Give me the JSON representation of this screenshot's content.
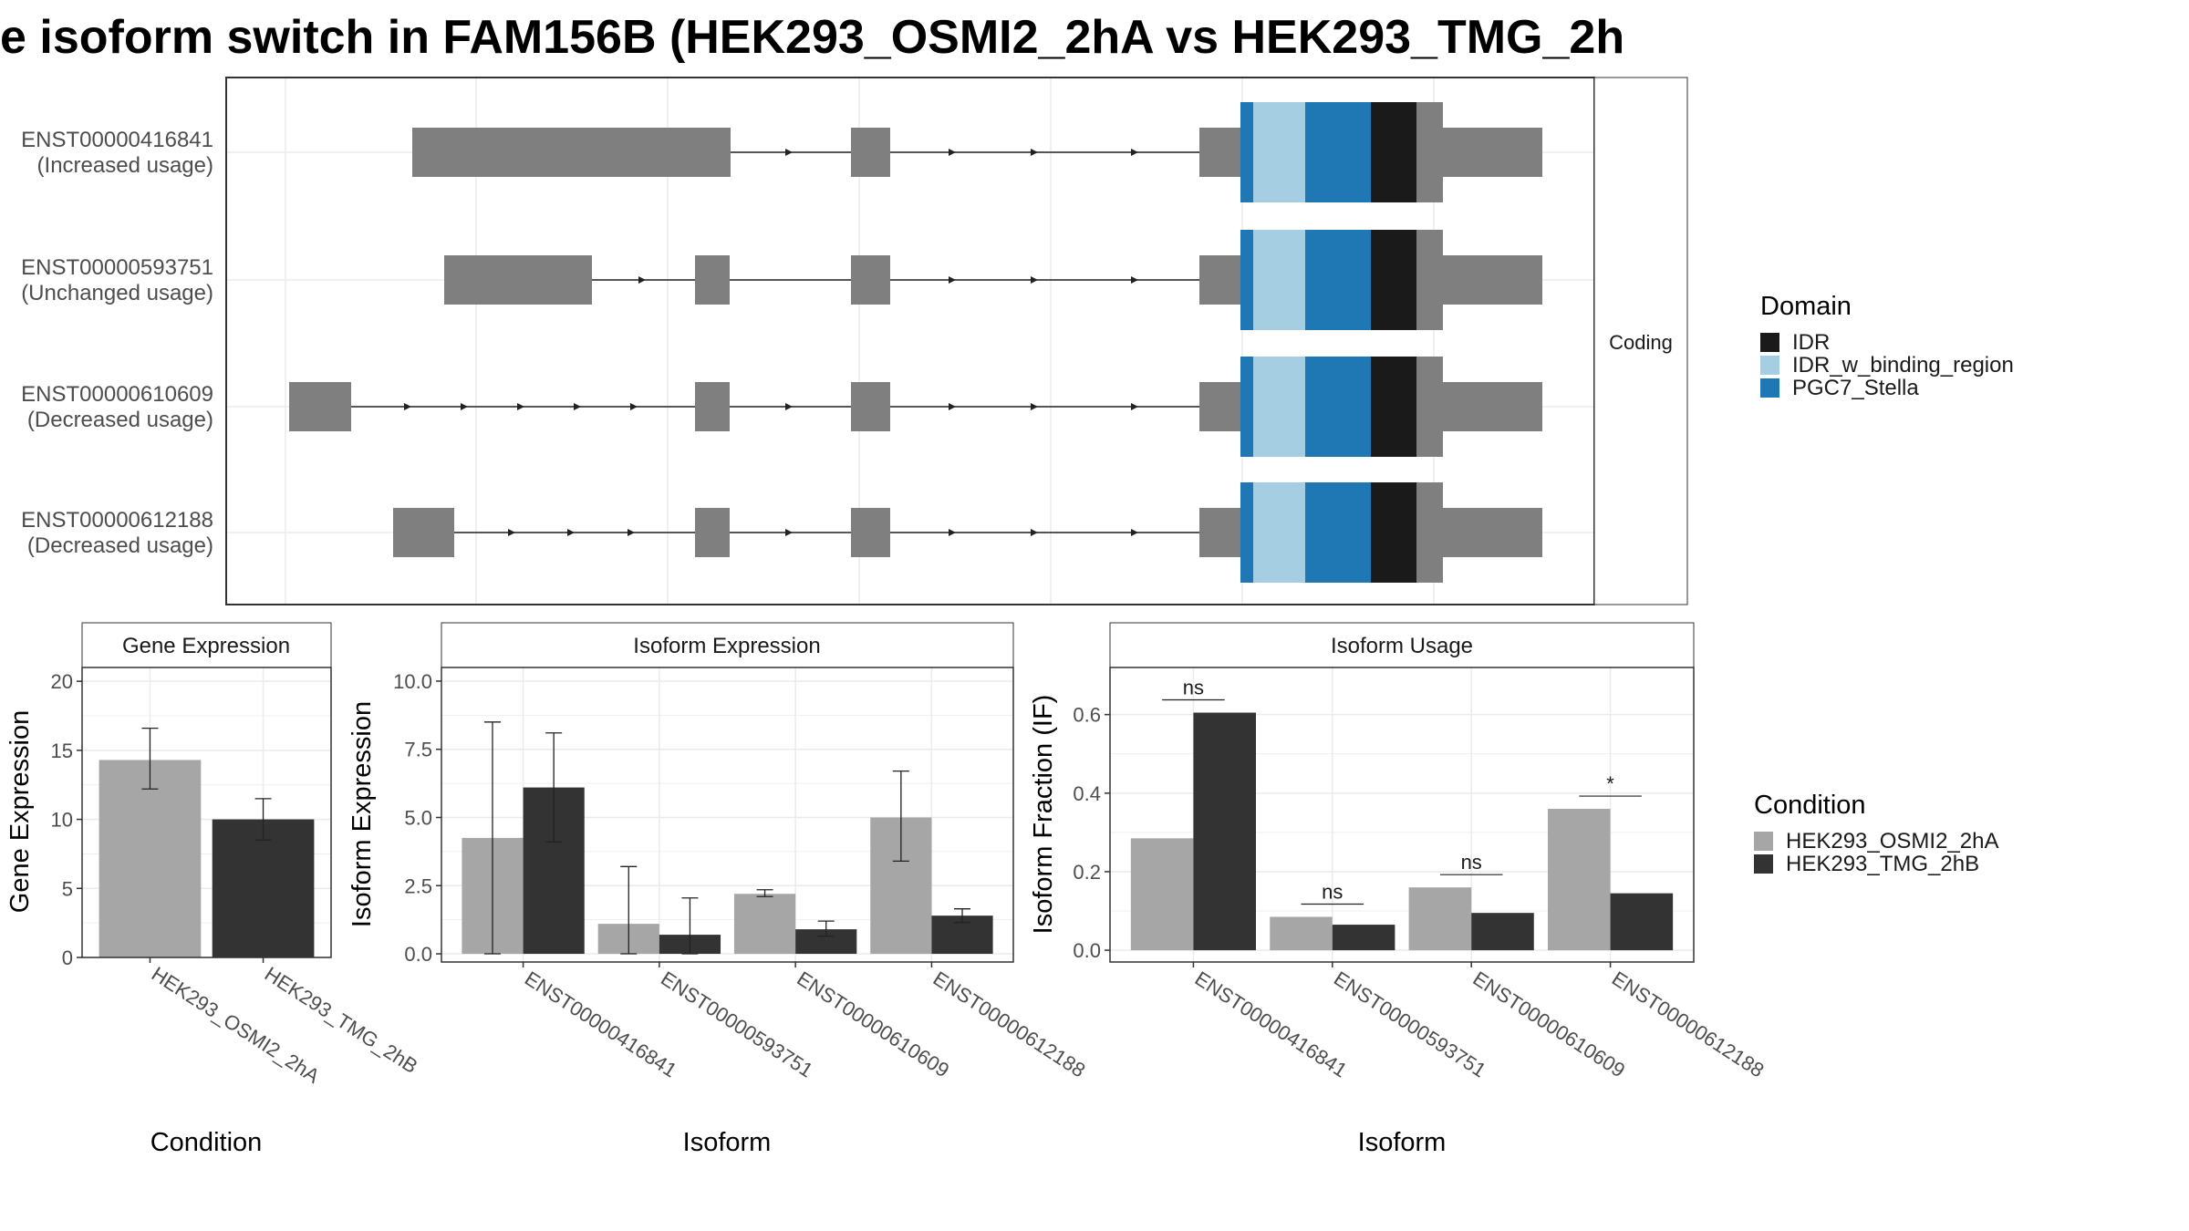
{
  "title": "e isoform switch in FAM156B (HEK293_OSMI2_2hA vs HEK293_TMG_2h",
  "colors": {
    "panel_border": "#333333",
    "strip_fill": "#ffffff",
    "grid": "#ebebeb",
    "gray_feature": "#7f7f7f",
    "idr": "#1a1a1a",
    "idr_binding": "#a6cee3",
    "pgc7": "#1f78b4",
    "cond_a": "#a6a6a6",
    "cond_b": "#333333"
  },
  "legend": {
    "domain": {
      "title": "Domain",
      "items": [
        {
          "label": "IDR",
          "color": "#1a1a1a"
        },
        {
          "label": "IDR_w_binding_region",
          "color": "#a6cee3"
        },
        {
          "label": "PGC7_Stella",
          "color": "#1f78b4"
        }
      ]
    },
    "condition": {
      "title": "Condition",
      "items": [
        {
          "label": "HEK293_OSMI2_2hA",
          "color": "#a6a6a6"
        },
        {
          "label": "HEK293_TMG_2hB",
          "color": "#333333"
        }
      ]
    }
  },
  "chart_data": [
    {
      "type": "gene-structure",
      "strip_label": "Coding",
      "transcripts": [
        {
          "id": "ENST00000416841",
          "usage": "(Increased usage)"
        },
        {
          "id": "ENST00000593751",
          "usage": "(Unchanged usage)"
        },
        {
          "id": "ENST00000610609",
          "usage": "(Decreased usage)"
        },
        {
          "id": "ENST00000612188",
          "usage": "(Decreased usage)"
        }
      ]
    },
    {
      "type": "bar",
      "title": "Gene Expression",
      "xlabel": "Condition",
      "ylabel": "Gene Expression",
      "categories": [
        "HEK293_OSMI2_2hA",
        "HEK293_TMG_2hB"
      ],
      "values": [
        14.3,
        10.0
      ],
      "errors": [
        [
          12.2,
          16.6
        ],
        [
          8.5,
          11.5
        ]
      ],
      "ylim": [
        0,
        21
      ],
      "yticks": [
        0,
        5,
        10,
        15,
        20
      ]
    },
    {
      "type": "bar",
      "title": "Isoform Expression",
      "xlabel": "Isoform",
      "ylabel": "Isoform Expression",
      "categories": [
        "ENST00000416841",
        "ENST00000593751",
        "ENST00000610609",
        "ENST00000612188"
      ],
      "series": [
        {
          "name": "HEK293_OSMI2_2hA",
          "values": [
            4.25,
            1.1,
            2.2,
            5.0
          ],
          "errors": [
            [
              0,
              8.5
            ],
            [
              0,
              3.2
            ],
            [
              2.1,
              2.35
            ],
            [
              3.4,
              6.7
            ]
          ]
        },
        {
          "name": "HEK293_TMG_2hB",
          "values": [
            6.1,
            0.7,
            0.9,
            1.4
          ],
          "errors": [
            [
              4.1,
              8.1
            ],
            [
              0,
              2.05
            ],
            [
              0.65,
              1.2
            ],
            [
              1.15,
              1.65
            ]
          ]
        }
      ],
      "ylim": [
        -0.3,
        10.5
      ],
      "yticks": [
        0.0,
        2.5,
        5.0,
        7.5,
        10.0
      ],
      "ytick_labels": [
        "0.0",
        "2.5",
        "5.0",
        "7.5",
        "10.0"
      ]
    },
    {
      "type": "bar",
      "title": "Isoform Usage",
      "xlabel": "Isoform",
      "ylabel": "Isoform Fraction (IF)",
      "categories": [
        "ENST00000416841",
        "ENST00000593751",
        "ENST00000610609",
        "ENST00000612188"
      ],
      "series": [
        {
          "name": "HEK293_OSMI2_2hA",
          "values": [
            0.285,
            0.085,
            0.16,
            0.36
          ]
        },
        {
          "name": "HEK293_TMG_2hB",
          "values": [
            0.605,
            0.065,
            0.095,
            0.145
          ]
        }
      ],
      "significance": [
        "ns",
        "ns",
        "ns",
        "*"
      ],
      "ylim": [
        -0.03,
        0.72
      ],
      "yticks": [
        0.0,
        0.2,
        0.4,
        0.6
      ],
      "ytick_labels": [
        "0.0",
        "0.2",
        "0.4",
        "0.6"
      ]
    }
  ]
}
